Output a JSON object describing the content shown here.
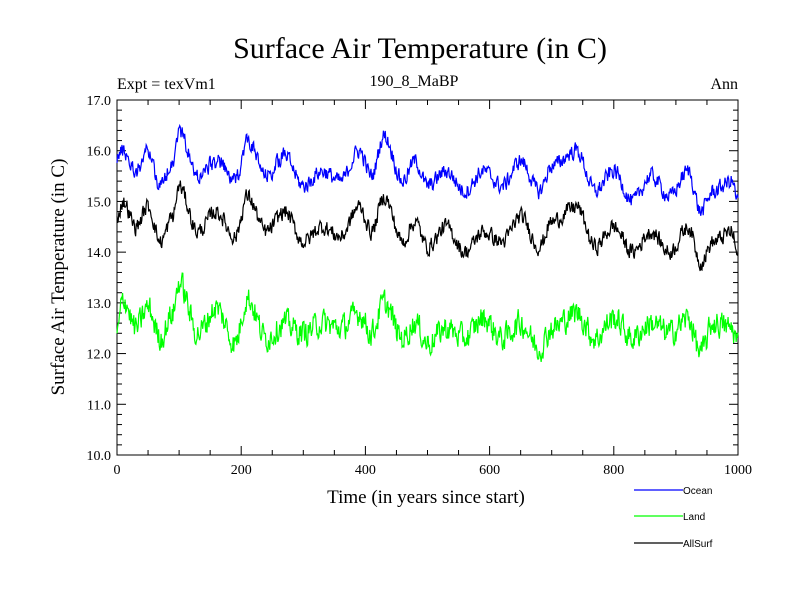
{
  "chart_data": {
    "type": "line",
    "title": "Surface Air Temperature (in C)",
    "subtitle_left": "Expt = texVm1",
    "subtitle_center": "190_8_MaBP",
    "subtitle_right": "Ann",
    "xlabel": "Time (in years since start)",
    "ylabel": "Surface Air Temperature (in C)",
    "xlim": [
      0,
      1000
    ],
    "ylim": [
      10.0,
      17.0
    ],
    "xticks": [
      0,
      200,
      400,
      600,
      800,
      1000
    ],
    "xtick_labels": [
      "0",
      "200",
      "400",
      "600",
      "800",
      "1000"
    ],
    "yticks": [
      10,
      11,
      12,
      13,
      14,
      15,
      16,
      17
    ],
    "ytick_labels": [
      "10.0",
      "11.0",
      "12.0",
      "13.0",
      "14.0",
      "15.0",
      "16.0",
      "17.0"
    ],
    "grid": false,
    "legend_position": "bottom-right",
    "series": [
      {
        "name": "Ocean",
        "color": "#0000ff",
        "x": [
          0,
          10,
          30,
          50,
          70,
          90,
          100,
          130,
          160,
          190,
          210,
          240,
          270,
          300,
          330,
          360,
          390,
          410,
          430,
          460,
          480,
          500,
          530,
          560,
          590,
          620,
          650,
          680,
          700,
          740,
          770,
          800,
          830,
          860,
          890,
          920,
          940,
          960,
          990,
          1000
        ],
        "values": [
          15.9,
          16.0,
          15.6,
          16.0,
          15.3,
          15.8,
          16.4,
          15.5,
          15.8,
          15.4,
          16.2,
          15.5,
          15.9,
          15.3,
          15.6,
          15.4,
          16.0,
          15.5,
          16.3,
          15.4,
          15.8,
          15.3,
          15.6,
          15.2,
          15.6,
          15.3,
          15.8,
          15.2,
          15.7,
          16.0,
          15.2,
          15.6,
          15.0,
          15.5,
          15.1,
          15.6,
          14.8,
          15.2,
          15.4,
          15.0
        ]
      },
      {
        "name": "Land",
        "color": "#00ff00",
        "x": [
          0,
          10,
          30,
          50,
          70,
          90,
          100,
          130,
          160,
          190,
          210,
          240,
          270,
          300,
          330,
          360,
          390,
          410,
          430,
          460,
          480,
          500,
          530,
          560,
          590,
          620,
          650,
          680,
          700,
          740,
          770,
          800,
          830,
          860,
          890,
          920,
          940,
          960,
          990,
          1000
        ],
        "values": [
          12.4,
          13.1,
          12.5,
          12.9,
          12.3,
          12.8,
          13.4,
          12.4,
          12.9,
          12.2,
          13.1,
          12.3,
          12.6,
          12.4,
          12.6,
          12.5,
          12.8,
          12.4,
          13.0,
          12.3,
          12.6,
          12.2,
          12.5,
          12.3,
          12.7,
          12.3,
          12.6,
          12.1,
          12.5,
          12.8,
          12.3,
          12.7,
          12.3,
          12.6,
          12.4,
          12.7,
          12.0,
          12.6,
          12.5,
          12.2
        ]
      },
      {
        "name": "AllSurf",
        "color": "#000000",
        "x": [
          0,
          10,
          30,
          50,
          70,
          90,
          100,
          130,
          160,
          190,
          210,
          240,
          270,
          300,
          330,
          360,
          390,
          410,
          430,
          460,
          480,
          500,
          530,
          560,
          590,
          620,
          650,
          680,
          700,
          740,
          770,
          800,
          830,
          860,
          890,
          920,
          940,
          960,
          990,
          1000
        ],
        "values": [
          14.7,
          15.0,
          14.5,
          14.9,
          14.2,
          14.7,
          15.3,
          14.4,
          14.8,
          14.3,
          15.1,
          14.4,
          14.8,
          14.2,
          14.5,
          14.3,
          14.9,
          14.4,
          15.1,
          14.2,
          14.6,
          14.1,
          14.5,
          14.0,
          14.4,
          14.2,
          14.7,
          14.1,
          14.6,
          14.9,
          14.1,
          14.5,
          14.0,
          14.4,
          14.0,
          14.5,
          13.8,
          14.2,
          14.4,
          13.9
        ]
      }
    ]
  }
}
